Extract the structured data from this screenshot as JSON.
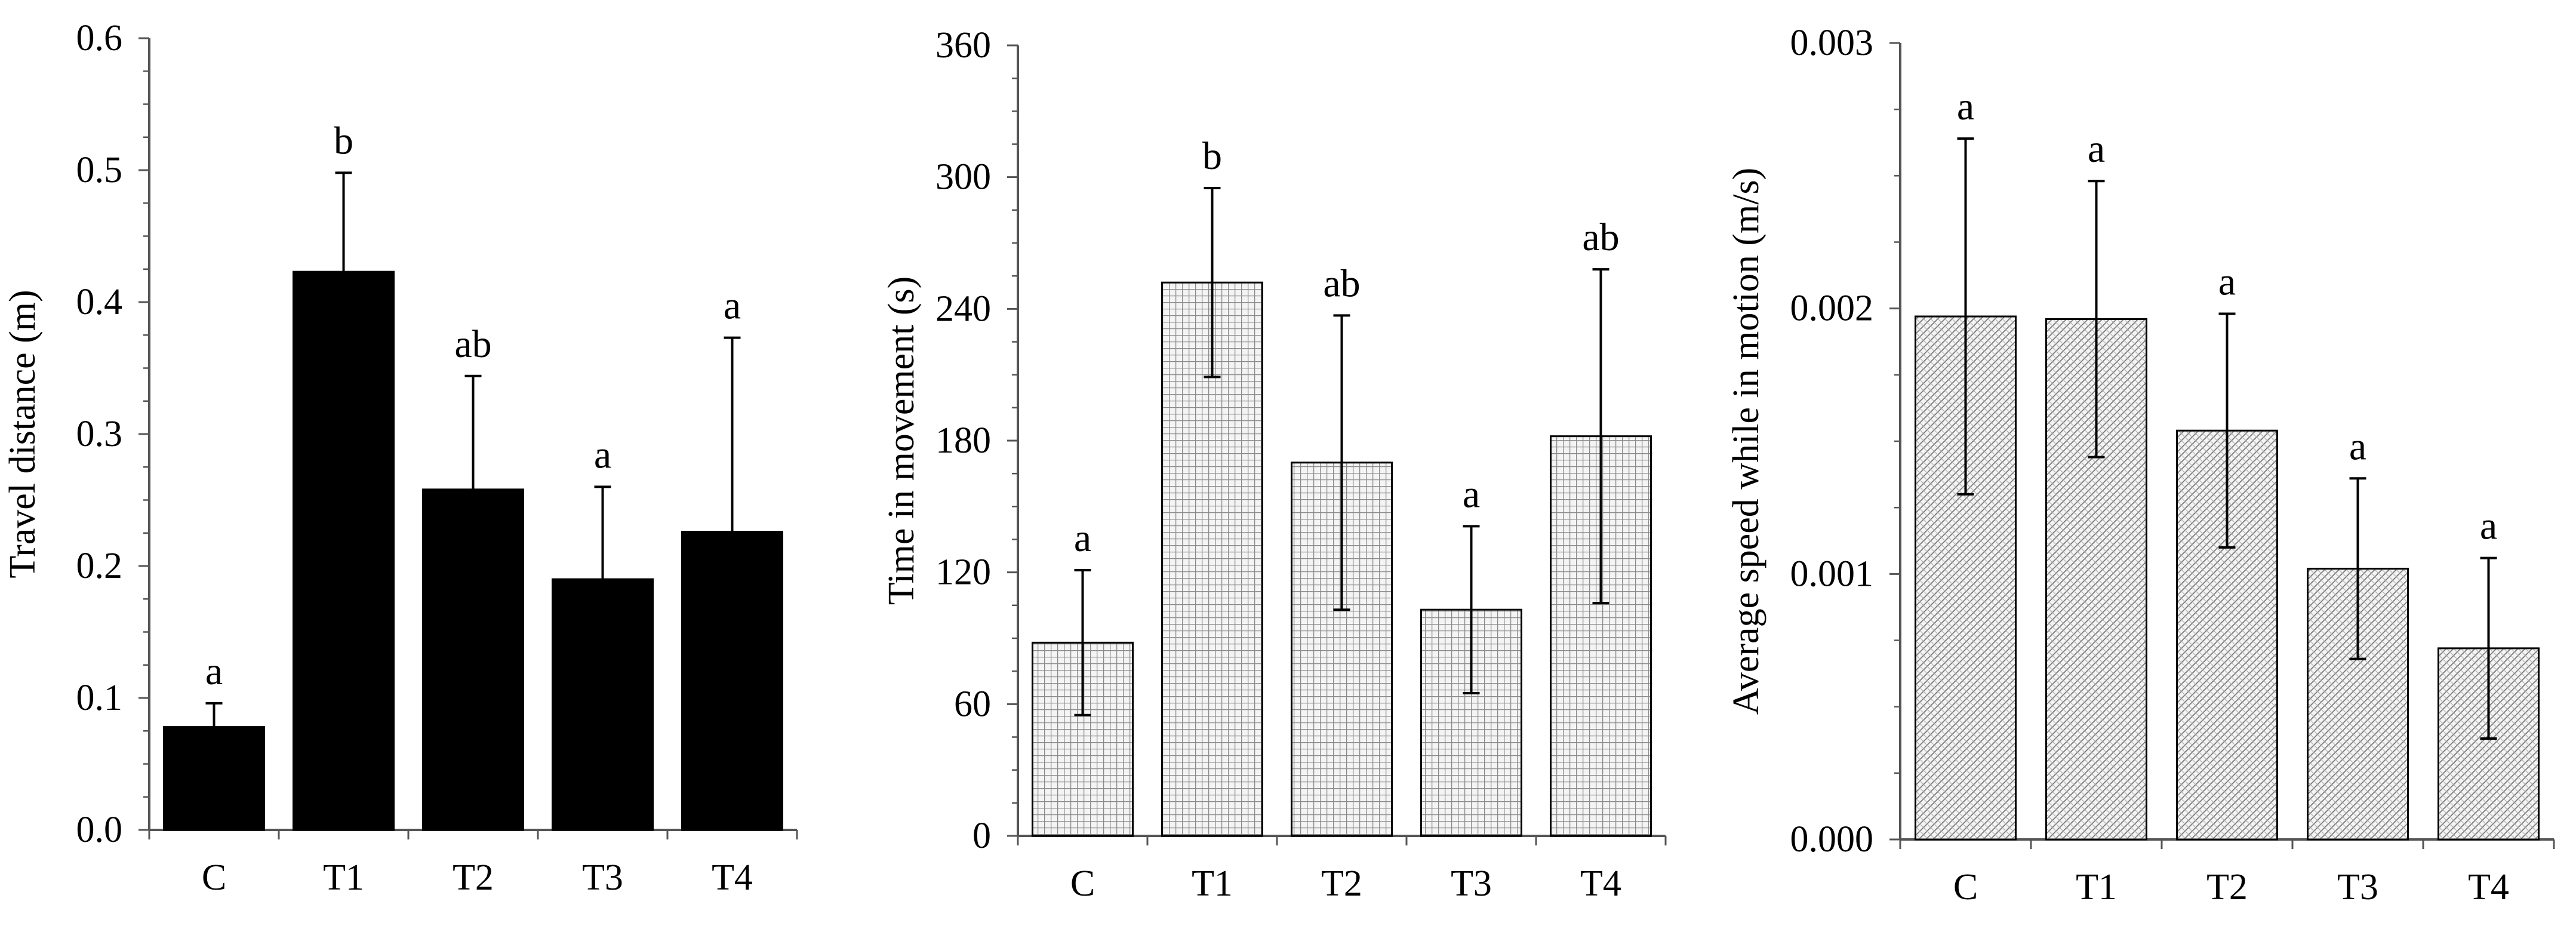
{
  "chart_data": [
    {
      "type": "bar",
      "ylabel": "Travel distance (m)",
      "categories": [
        "C",
        "T1",
        "T2",
        "T3",
        "T4"
      ],
      "values": [
        0.078,
        0.423,
        0.258,
        0.19,
        0.226
      ],
      "errors": [
        0.018,
        0.075,
        0.086,
        0.07,
        0.147
      ],
      "significance": [
        "a",
        "b",
        "ab",
        "a",
        "a"
      ],
      "ylim": [
        0,
        0.6
      ],
      "yticks": [
        "0.0",
        "0.1",
        "0.2",
        "0.3",
        "0.4",
        "0.5",
        "0.6"
      ],
      "fill": "solid",
      "fill_color": "#000000",
      "grid": false
    },
    {
      "type": "bar",
      "ylabel": "Time in movement (s)",
      "categories": [
        "C",
        "T1",
        "T2",
        "T3",
        "T4"
      ],
      "values": [
        88,
        252,
        170,
        103,
        182
      ],
      "errors": [
        33,
        43,
        67,
        38,
        76
      ],
      "significance": [
        "a",
        "b",
        "ab",
        "a",
        "ab"
      ],
      "ylim": [
        0,
        360
      ],
      "yticks": [
        "0",
        "60",
        "120",
        "180",
        "240",
        "300",
        "360"
      ],
      "fill": "grid-pattern",
      "fill_color": "#f2f2f2",
      "grid": false
    },
    {
      "type": "bar",
      "ylabel": "Average speed while in motion (m/s)",
      "categories": [
        "C",
        "T1",
        "T2",
        "T3",
        "T4"
      ],
      "values": [
        0.00197,
        0.00196,
        0.00154,
        0.00102,
        0.00072
      ],
      "errors": [
        0.00067,
        0.00052,
        0.00044,
        0.00034,
        0.00034
      ],
      "significance": [
        "a",
        "a",
        "a",
        "a",
        "a"
      ],
      "ylim": [
        0,
        0.003
      ],
      "yticks": [
        "0.000",
        "0.001",
        "0.002",
        "0.003"
      ],
      "fill": "crosshatch-pattern",
      "fill_color": "#f2f2f2",
      "grid": false
    }
  ]
}
